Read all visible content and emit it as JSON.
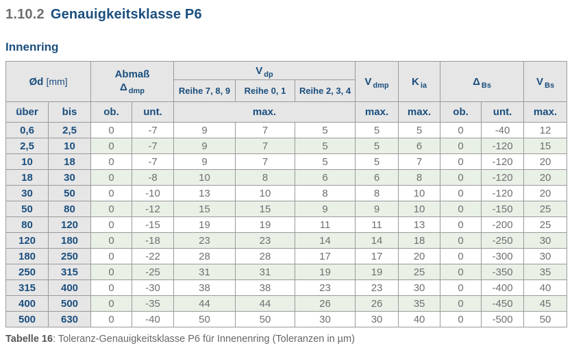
{
  "heading": {
    "number": "1.10.2",
    "title": "Genauigkeitsklasse P6",
    "subtitle": "Innenring"
  },
  "table": {
    "groups": {
      "diameter": {
        "symbol": "Ød",
        "unit": "[mm]"
      },
      "abmass": {
        "title": "Abmaß",
        "symbol": "Δ",
        "symbol_sub": "dmp"
      },
      "vdp": {
        "symbol": "V",
        "symbol_sub": "dp",
        "reihe": [
          "Reihe 7, 8, 9",
          "Reihe 0, 1",
          "Reihe 2, 3, 4"
        ]
      },
      "vdmp": {
        "symbol": "V",
        "symbol_sub": "dmp"
      },
      "kia": {
        "symbol": "K",
        "symbol_sub": "ia"
      },
      "delta_bs": {
        "symbol": "Δ",
        "symbol_sub": "Bs"
      },
      "vbs": {
        "symbol": "V",
        "symbol_sub": "Bs"
      }
    },
    "subheader": [
      "über",
      "bis",
      "ob.",
      "unt.",
      "max.",
      "max.",
      "max.",
      "ob.",
      "unt.",
      "max."
    ],
    "rows": [
      [
        "0,6",
        "2,5",
        "0",
        "-7",
        "9",
        "7",
        "5",
        "5",
        "5",
        "0",
        "-40",
        "12"
      ],
      [
        "2,5",
        "10",
        "0",
        "-7",
        "9",
        "7",
        "5",
        "5",
        "6",
        "0",
        "-120",
        "15"
      ],
      [
        "10",
        "18",
        "0",
        "-7",
        "9",
        "7",
        "5",
        "5",
        "7",
        "0",
        "-120",
        "20"
      ],
      [
        "18",
        "30",
        "0",
        "-8",
        "10",
        "8",
        "6",
        "6",
        "8",
        "0",
        "-120",
        "20"
      ],
      [
        "30",
        "50",
        "0",
        "-10",
        "13",
        "10",
        "8",
        "8",
        "10",
        "0",
        "-120",
        "20"
      ],
      [
        "50",
        "80",
        "0",
        "-12",
        "15",
        "15",
        "9",
        "9",
        "10",
        "0",
        "-150",
        "25"
      ],
      [
        "80",
        "120",
        "0",
        "-15",
        "19",
        "19",
        "11",
        "11",
        "13",
        "0",
        "-200",
        "25"
      ],
      [
        "120",
        "180",
        "0",
        "-18",
        "23",
        "23",
        "14",
        "14",
        "18",
        "0",
        "-250",
        "30"
      ],
      [
        "180",
        "250",
        "0",
        "-22",
        "28",
        "28",
        "17",
        "17",
        "20",
        "0",
        "-300",
        "30"
      ],
      [
        "250",
        "315",
        "0",
        "-25",
        "31",
        "31",
        "19",
        "19",
        "25",
        "0",
        "-350",
        "35"
      ],
      [
        "315",
        "400",
        "0",
        "-30",
        "38",
        "38",
        "23",
        "23",
        "30",
        "0",
        "-400",
        "40"
      ],
      [
        "400",
        "500",
        "0",
        "-35",
        "44",
        "44",
        "26",
        "26",
        "35",
        "0",
        "-450",
        "45"
      ],
      [
        "500",
        "630",
        "0",
        "-40",
        "50",
        "50",
        "30",
        "30",
        "40",
        "0",
        "-500",
        "50"
      ]
    ]
  },
  "caption": {
    "label": "Tabelle 16",
    "text": ": Toleranz-Genauigkeitsklasse P6 für Innenenring (Toleranzen in µm)"
  },
  "colors": {
    "accent_blue": "#1a4e7e",
    "heading_number_gray": "#6e6e6e",
    "header_bg": "#e6e6e6",
    "row_alt_green": "#e9f1e7",
    "grid_line": "#999999",
    "data_text": "#6f6f6f"
  }
}
